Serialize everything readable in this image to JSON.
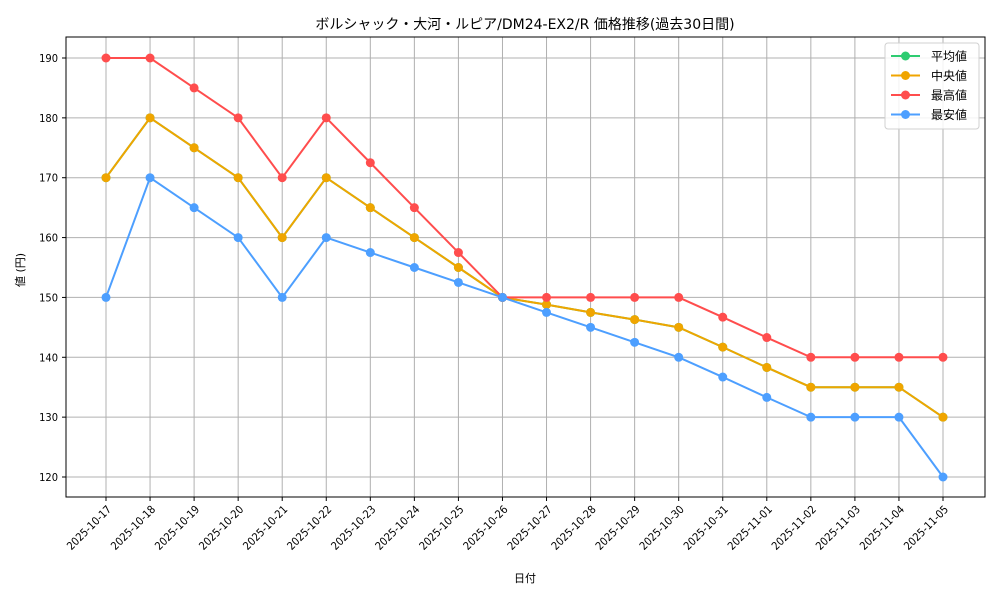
{
  "chart_data": {
    "type": "line",
    "title": "ボルシャック・大河・ルピア/DM24-EX2/R 価格推移(過去30日間)",
    "xlabel": "日付",
    "ylabel": "値 (円)",
    "ylim": [
      116.5,
      193.5
    ],
    "yticks": [
      120,
      130,
      140,
      150,
      160,
      170,
      180,
      190
    ],
    "grid": true,
    "legend_position": "upper right",
    "x": [
      "2025-10-17",
      "2025-10-18",
      "2025-10-19",
      "2025-10-20",
      "2025-10-21",
      "2025-10-22",
      "2025-10-23",
      "2025-10-24",
      "2025-10-25",
      "2025-10-26",
      "2025-10-27",
      "2025-10-28",
      "2025-10-29",
      "2025-10-30",
      "2025-10-31",
      "2025-11-01",
      "2025-11-02",
      "2025-11-03",
      "2025-11-04",
      "2025-11-05"
    ],
    "series": [
      {
        "name": "平均値",
        "color": "#2ecc71",
        "values": [
          170,
          180,
          175,
          170,
          160,
          170,
          165,
          160,
          155,
          150,
          148.8,
          147.5,
          146.3,
          145,
          141.7,
          138.3,
          135,
          135,
          135,
          130
        ]
      },
      {
        "name": "中央値",
        "color": "#f0a500",
        "values": [
          170,
          180,
          175,
          170,
          160,
          170,
          165,
          160,
          155,
          150,
          148.8,
          147.5,
          146.3,
          145,
          141.7,
          138.3,
          135,
          135,
          135,
          130
        ]
      },
      {
        "name": "最高値",
        "color": "#ff4d4d",
        "values": [
          190,
          190,
          185,
          180,
          170,
          180,
          172.5,
          165,
          157.5,
          150,
          150,
          150,
          150,
          150,
          146.7,
          143.3,
          140,
          140,
          140,
          140
        ]
      },
      {
        "name": "最安値",
        "color": "#4d9fff",
        "values": [
          150,
          170,
          165,
          160,
          150,
          160,
          157.5,
          155,
          152.5,
          150,
          147.5,
          145,
          142.5,
          140,
          136.7,
          133.3,
          130,
          130,
          130,
          120
        ]
      }
    ]
  }
}
